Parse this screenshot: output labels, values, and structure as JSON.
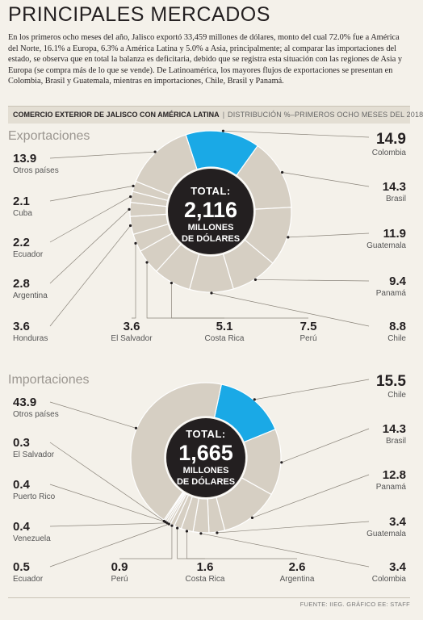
{
  "header": {
    "title": "PRINCIPALES MERCADOS",
    "intro": "En los primeros ocho meses del año, Jalisco exportó 33,459 millones de dólares, monto del cual 72.0% fue a América del Norte, 16.1% a Europa, 6.3% a América Latina y 5.0% a Asia, principalmente; al comparar las importaciones del estado, se observa que en total la balanza es deficitaria, debido que se registra esta situación con las regiones de Asia y Europa (se compra más de lo que se vende). De Latinoamérica, los mayores flujos de exportaciones se presentan en Colombia, Brasil y Guatemala, mientras en importaciones, Chile, Brasil y Panamá.",
    "subhead_bold": "COMERCIO EXTERIOR DE JALISCO CON AMÉRICA LATINA",
    "subhead_sep": "|",
    "subhead_light": "DISTRIBUCIÓN %–PRIMEROS OCHO MESES DEL 2018"
  },
  "colors": {
    "highlight": "#1aa9e6",
    "slice": "#d6cfc3",
    "slice_edge": "#ffffff",
    "center": "#231f20"
  },
  "footer": {
    "source": "FUENTE: IIEG. GRÁFICO EE: STAFF"
  },
  "chart_data": [
    {
      "type": "pie",
      "title": "Exportaciones",
      "center": {
        "line1": "TOTAL:",
        "line2": "2,116",
        "line3": "MILLONES",
        "line4": "DE DÓLARES"
      },
      "slices": [
        {
          "name": "Colombia",
          "value": 14.9,
          "display": "14.9",
          "highlight": true
        },
        {
          "name": "Brasil",
          "value": 14.3,
          "display": "14.3"
        },
        {
          "name": "Guatemala",
          "value": 11.9,
          "display": "11.9"
        },
        {
          "name": "Panamá",
          "value": 9.4,
          "display": "9.4"
        },
        {
          "name": "Chile",
          "value": 8.8,
          "display": "8.8"
        },
        {
          "name": "Perú",
          "value": 7.5,
          "display": "7.5"
        },
        {
          "name": "Costa Rica",
          "value": 5.1,
          "display": "5.1"
        },
        {
          "name": "El Salvador",
          "value": 3.6,
          "display": "3.6"
        },
        {
          "name": "Honduras",
          "value": 3.6,
          "display": "3.6"
        },
        {
          "name": "Argentina",
          "value": 2.8,
          "display": "2.8"
        },
        {
          "name": "Ecuador",
          "value": 2.2,
          "display": "2.2"
        },
        {
          "name": "Cuba",
          "value": 2.1,
          "display": "2.1"
        },
        {
          "name": "Otros países",
          "value": 13.9,
          "display": "13.9"
        }
      ]
    },
    {
      "type": "pie",
      "title": "Importaciones",
      "center": {
        "line1": "TOTAL:",
        "line2": "1,665",
        "line3": "MILLONES",
        "line4": "DE DÓLARES"
      },
      "slices": [
        {
          "name": "Chile",
          "value": 15.5,
          "display": "15.5",
          "highlight": true
        },
        {
          "name": "Brasil",
          "value": 14.3,
          "display": "14.3"
        },
        {
          "name": "Panamá",
          "value": 12.8,
          "display": "12.8"
        },
        {
          "name": "Guatemala",
          "value": 3.4,
          "display": "3.4"
        },
        {
          "name": "Colombia",
          "value": 3.4,
          "display": "3.4"
        },
        {
          "name": "Argentina",
          "value": 2.6,
          "display": "2.6"
        },
        {
          "name": "Costa Rica",
          "value": 1.6,
          "display": "1.6"
        },
        {
          "name": "Perú",
          "value": 0.9,
          "display": "0.9"
        },
        {
          "name": "Ecuador",
          "value": 0.5,
          "display": "0.5"
        },
        {
          "name": "Venezuela",
          "value": 0.4,
          "display": "0.4"
        },
        {
          "name": "Puerto Rico",
          "value": 0.4,
          "display": "0.4"
        },
        {
          "name": "El Salvador",
          "value": 0.3,
          "display": "0.3"
        },
        {
          "name": "Otros países",
          "value": 43.9,
          "display": "43.9"
        }
      ]
    }
  ]
}
